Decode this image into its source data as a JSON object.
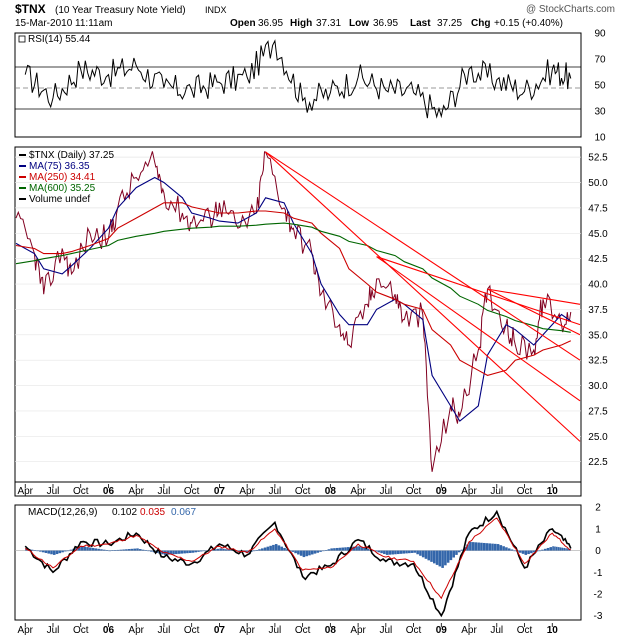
{
  "header": {
    "symbol": "$TNX",
    "name": "(10 Year Treasury Note Yield)",
    "exchange": "INDX",
    "watermark": "@ StockCharts.com",
    "date": "15-Mar-2010 11:11am",
    "open_label": "Open",
    "open_value": "36.95",
    "high_label": "High",
    "high_value": "37.31",
    "low_label": "Low",
    "low_value": "36.95",
    "last_label": "Last",
    "last_value": "37.25",
    "chg_label": "Chg",
    "chg_value": "+0.15 (+0.40%)"
  },
  "rsi_panel": {
    "legend": "RSI(14) 55.44",
    "ticks": [
      "90",
      "70",
      "50",
      "30",
      "10"
    ]
  },
  "price_panel": {
    "legend": [
      {
        "text": "$TNX (Daily) 37.25",
        "color": "#000000"
      },
      {
        "text": "MA(75) 36.35",
        "color": "#000080"
      },
      {
        "text": "MA(250) 34.41",
        "color": "#cc0000"
      },
      {
        "text": "MA(600) 35.25",
        "color": "#006600"
      },
      {
        "text": "Volume undef",
        "color": "#000000"
      }
    ],
    "ticks": [
      "52.5",
      "50.0",
      "47.5",
      "45.0",
      "42.5",
      "40.0",
      "37.5",
      "35.0",
      "32.5",
      "30.0",
      "27.5",
      "25.0",
      "22.5"
    ]
  },
  "macd_panel": {
    "legend_prefix": "MACD(12,26,9)",
    "macd_value": "0.102",
    "signal_value": "0.035",
    "hist_value": "0.067",
    "macd_color": "#000000",
    "signal_color": "#cc0000",
    "hist_color": "#3366aa",
    "ticks": [
      "2",
      "1",
      "0",
      "-1",
      "-2",
      "-3"
    ]
  },
  "x_axis": {
    "labels": [
      "Apr",
      "Jul",
      "Oct",
      "06",
      "Apr",
      "Jul",
      "Oct",
      "07",
      "Apr",
      "Jul",
      "Oct",
      "08",
      "Apr",
      "Jul",
      "Oct",
      "09",
      "Apr",
      "Jul",
      "Oct",
      "10"
    ]
  },
  "colors": {
    "price": "#800020",
    "trendline": "#ff0000"
  },
  "chart_data": [
    {
      "type": "line",
      "title": "RSI(14)",
      "ylim": [
        10,
        90
      ],
      "reference_lines": [
        70,
        50,
        30
      ],
      "x": [
        "2005-04",
        "2005-07",
        "2005-10",
        "2006-01",
        "2006-04",
        "2006-07",
        "2006-10",
        "2007-01",
        "2007-04",
        "2007-07",
        "2007-10",
        "2008-01",
        "2008-04",
        "2008-07",
        "2008-10",
        "2009-01",
        "2009-04",
        "2009-07",
        "2009-10",
        "2010-01",
        "2010-03"
      ],
      "series": [
        {
          "name": "RSI(14)",
          "values": [
            58,
            40,
            62,
            58,
            65,
            48,
            46,
            52,
            56,
            84,
            38,
            44,
            56,
            46,
            44,
            26,
            62,
            54,
            45,
            62,
            55
          ]
        }
      ]
    },
    {
      "type": "line",
      "title": "$TNX (Daily)",
      "ylim": [
        20.5,
        53.5
      ],
      "x": [
        "2005-03",
        "2005-05",
        "2005-06",
        "2005-08",
        "2005-09",
        "2005-11",
        "2006-01",
        "2006-02",
        "2006-04",
        "2006-06",
        "2006-07",
        "2006-09",
        "2006-10",
        "2006-12",
        "2007-01",
        "2007-03",
        "2007-05",
        "2007-06",
        "2007-08",
        "2007-09",
        "2007-11",
        "2007-12",
        "2008-02",
        "2008-03",
        "2008-05",
        "2008-06",
        "2008-08",
        "2008-09",
        "2008-11",
        "2008-12",
        "2009-02",
        "2009-03",
        "2009-05",
        "2009-06",
        "2009-08",
        "2009-09",
        "2009-11",
        "2009-12",
        "2010-02",
        "2010-03"
      ],
      "series": [
        {
          "name": "$TNX (Daily)",
          "values": [
            46.5,
            43.0,
            39.0,
            43.5,
            41.0,
            45.0,
            44.5,
            47.5,
            50.5,
            52.0,
            49.0,
            47.0,
            46.0,
            46.5,
            48.0,
            45.5,
            47.0,
            53.0,
            47.5,
            45.5,
            43.0,
            39.0,
            36.0,
            34.0,
            38.0,
            40.5,
            39.0,
            36.5,
            37.0,
            21.5,
            28.0,
            27.0,
            33.5,
            39.5,
            36.0,
            34.0,
            33.5,
            38.5,
            36.0,
            37.25
          ]
        },
        {
          "name": "MA(75)",
          "values": [
            44.0,
            43.0,
            41.5,
            41.0,
            41.8,
            43.5,
            45.5,
            47.5,
            49.5,
            50.5,
            50.0,
            48.5,
            47.0,
            46.5,
            46.2,
            46.0,
            47.0,
            48.5,
            48.0,
            46.0,
            43.0,
            40.0,
            37.0,
            36.0,
            36.0,
            37.5,
            38.5,
            38.0,
            36.5,
            31.0,
            28.0,
            26.5,
            28.0,
            33.0,
            36.0,
            35.5,
            34.0,
            35.0,
            37.0,
            36.35
          ]
        },
        {
          "name": "MA(250)",
          "values": [
            43.8,
            43.5,
            43.0,
            43.0,
            43.2,
            43.8,
            44.5,
            45.5,
            46.5,
            47.5,
            48.0,
            48.0,
            47.6,
            47.2,
            47.0,
            47.0,
            47.2,
            47.2,
            47.0,
            46.5,
            46.0,
            45.0,
            43.5,
            41.5,
            40.0,
            39.2,
            38.5,
            38.0,
            37.5,
            35.5,
            34.0,
            32.5,
            31.5,
            31.0,
            31.5,
            32.5,
            33.0,
            33.5,
            34.0,
            34.41
          ]
        },
        {
          "name": "MA(600)",
          "values": [
            42.0,
            42.3,
            42.5,
            42.8,
            43.0,
            43.4,
            43.8,
            44.3,
            44.7,
            45.0,
            45.2,
            45.4,
            45.5,
            45.6,
            45.7,
            45.7,
            45.8,
            45.9,
            46.0,
            45.9,
            45.6,
            45.2,
            44.7,
            44.2,
            43.8,
            43.3,
            42.8,
            42.2,
            41.5,
            40.6,
            39.6,
            38.8,
            38.0,
            37.4,
            36.8,
            36.4,
            35.9,
            35.6,
            35.4,
            35.25
          ]
        }
      ]
    },
    {
      "type": "line",
      "title": "MACD(12,26,9)",
      "ylim": [
        -3.2,
        2.1
      ],
      "x": [
        "2005-04",
        "2005-07",
        "2005-10",
        "2006-01",
        "2006-04",
        "2006-07",
        "2006-10",
        "2007-01",
        "2007-04",
        "2007-07",
        "2007-10",
        "2008-01",
        "2008-04",
        "2008-07",
        "2008-10",
        "2009-01",
        "2009-04",
        "2009-07",
        "2009-10",
        "2010-01",
        "2010-03"
      ],
      "series": [
        {
          "name": "MACD",
          "values": [
            0.2,
            -1.0,
            0.4,
            0.3,
            0.8,
            -0.3,
            -0.6,
            0.3,
            -0.2,
            1.3,
            -1.2,
            -0.7,
            0.5,
            -0.5,
            -0.6,
            -3.0,
            0.8,
            1.8,
            -0.8,
            1.0,
            0.102
          ]
        },
        {
          "name": "Signal",
          "values": [
            0.1,
            -0.8,
            0.2,
            0.3,
            0.7,
            -0.1,
            -0.5,
            0.2,
            -0.1,
            1.0,
            -0.9,
            -0.8,
            0.3,
            -0.3,
            -0.5,
            -2.2,
            0.4,
            1.5,
            -0.6,
            0.8,
            0.035
          ]
        },
        {
          "name": "Histogram",
          "values": [
            0.1,
            -0.2,
            0.2,
            0.0,
            0.1,
            -0.2,
            -0.1,
            0.1,
            -0.1,
            0.3,
            -0.3,
            0.1,
            0.2,
            -0.2,
            -0.1,
            -0.8,
            0.4,
            0.3,
            -0.2,
            0.2,
            0.067
          ]
        }
      ]
    }
  ]
}
